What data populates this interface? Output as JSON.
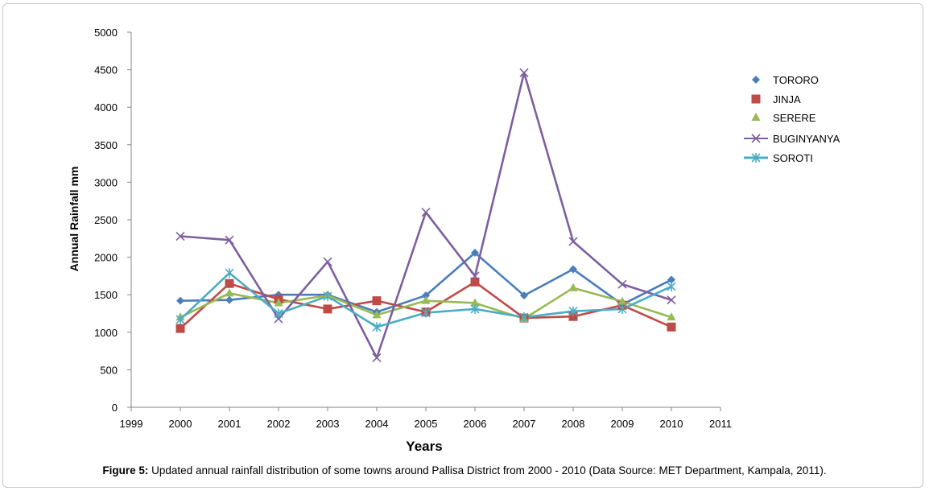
{
  "caption": {
    "label": "Figure 5:",
    "text": " Updated annual rainfall distribution of some towns around Pallisa District from 2000 - 2010 (Data Source: MET Department, Kampala, 2011)."
  },
  "chart_data": {
    "type": "line",
    "title": "",
    "xlabel": "Years",
    "ylabel": "Annual Rainfall mm",
    "xlim": [
      1999,
      2011
    ],
    "ylim": [
      0,
      5000
    ],
    "xticks": [
      "1999",
      "2000",
      "2001",
      "2002",
      "2003",
      "2004",
      "2005",
      "2006",
      "2007",
      "2008",
      "2009",
      "2010",
      "2011"
    ],
    "yticks": [
      "0",
      "500",
      "1000",
      "1500",
      "2000",
      "2500",
      "3000",
      "3500",
      "4000",
      "4500",
      "5000"
    ],
    "grid": false,
    "legend_position": "right",
    "x": [
      2000,
      2001,
      2002,
      2003,
      2004,
      2005,
      2006,
      2007,
      2008,
      2009,
      2010
    ],
    "series": [
      {
        "name": "TORORO",
        "color": "#4a7ebb",
        "marker": "diamond",
        "values": [
          1420,
          1430,
          1500,
          1500,
          1270,
          1490,
          2060,
          1490,
          1840,
          1370,
          1700
        ]
      },
      {
        "name": "JINJA",
        "color": "#be4b48",
        "marker": "square",
        "values": [
          1050,
          1650,
          1440,
          1310,
          1420,
          1270,
          1670,
          1190,
          1210,
          1360,
          1070
        ]
      },
      {
        "name": "SERERE",
        "color": "#98b954",
        "marker": "triangle",
        "values": [
          1200,
          1520,
          1390,
          1490,
          1230,
          1420,
          1390,
          1180,
          1590,
          1410,
          1200
        ]
      },
      {
        "name": "BUGINYANYA",
        "color": "#7d5fa0",
        "marker": "x",
        "values": [
          2280,
          2230,
          1180,
          1940,
          660,
          2600,
          1750,
          4460,
          2210,
          1640,
          1430
        ]
      },
      {
        "name": "SOROTI",
        "color": "#4bacc6",
        "marker": "star",
        "values": [
          1170,
          1790,
          1250,
          1480,
          1070,
          1260,
          1310,
          1200,
          1280,
          1310,
          1610
        ]
      }
    ]
  }
}
